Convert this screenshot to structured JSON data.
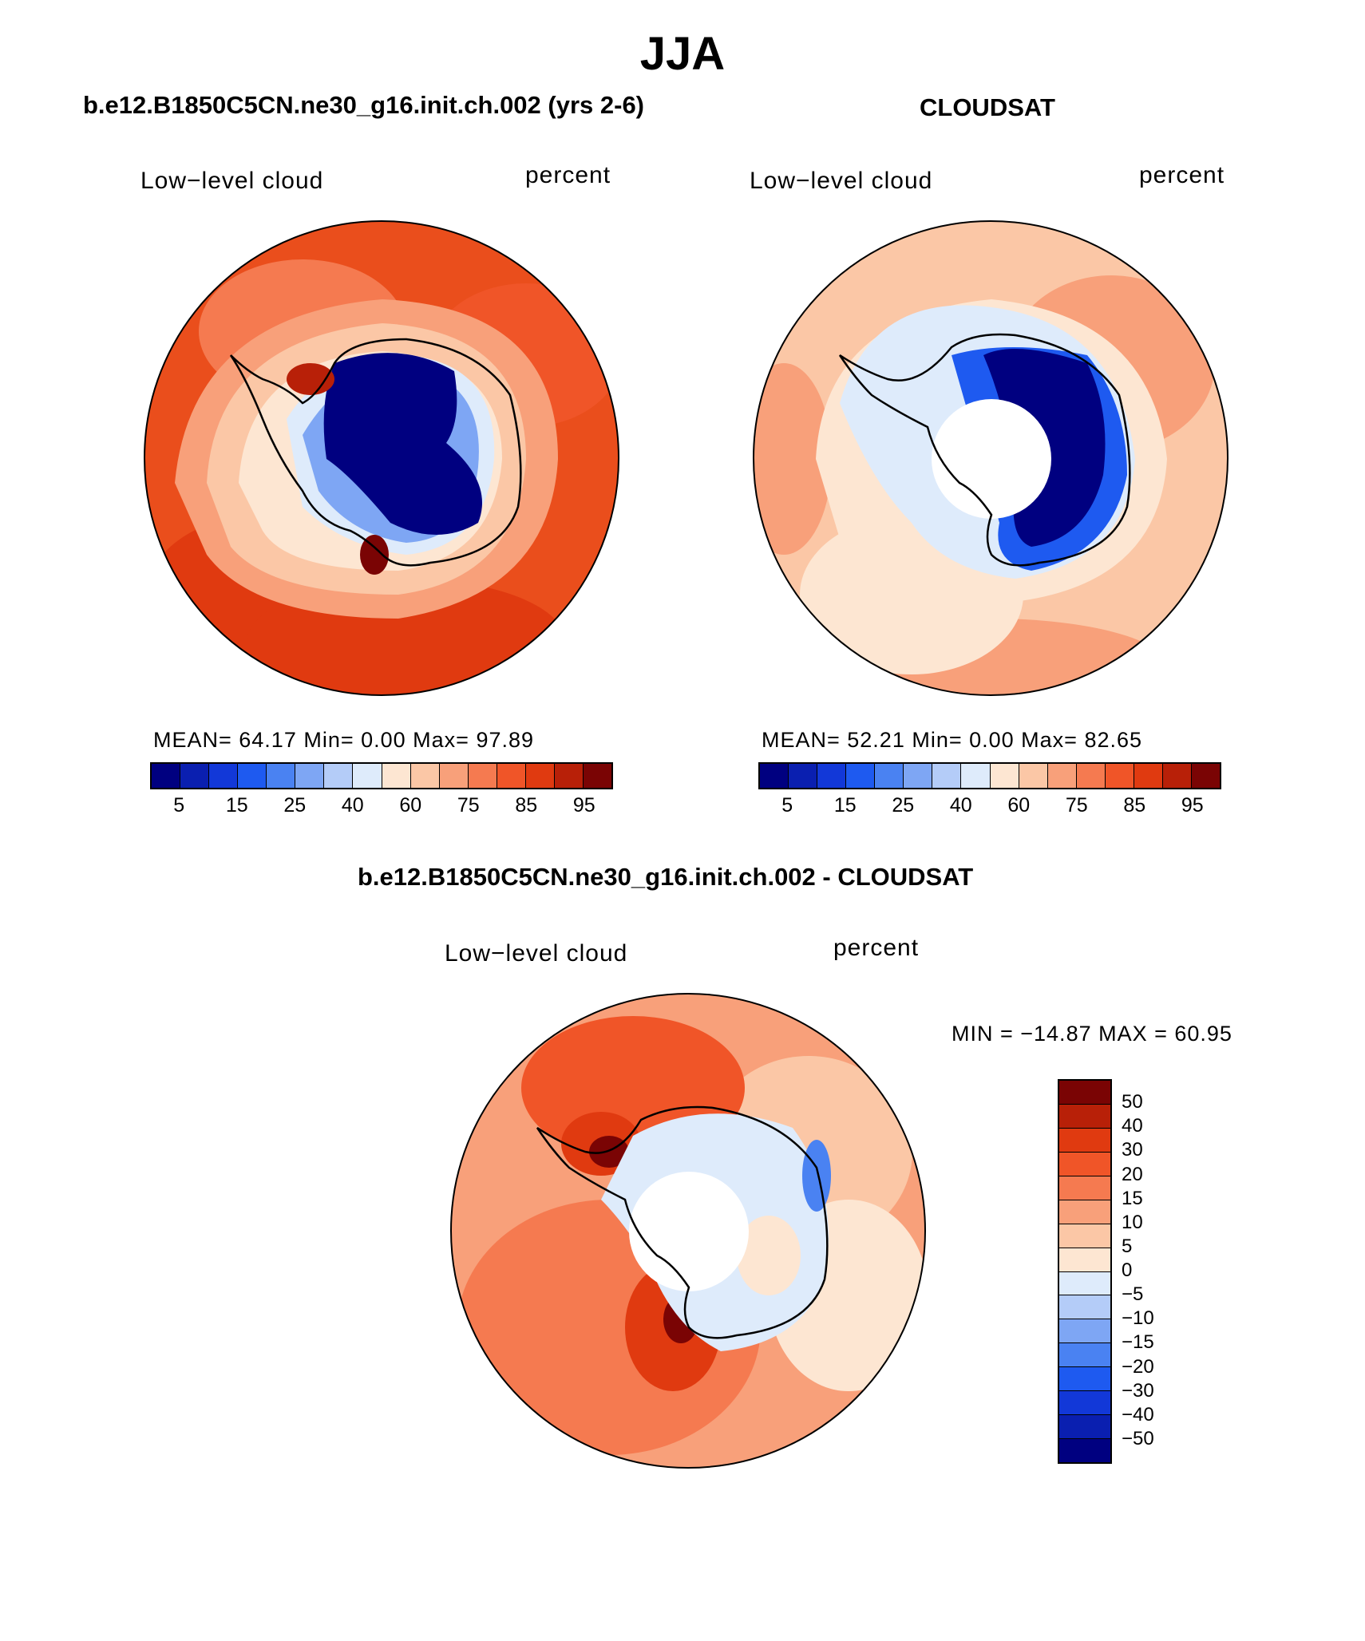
{
  "title": "JJA",
  "panels": [
    {
      "id": "model",
      "title": "b.e12.B1850C5CN.ne30_g16.init.ch.002 (yrs 2-6)",
      "variable": "Low−level cloud",
      "units": "percent",
      "stats_text": "MEAN=   64.17   Min=     0.00   Max=   97.89",
      "colorbar_ticks": [
        "5",
        "15",
        "25",
        "40",
        "60",
        "75",
        "85",
        "95"
      ]
    },
    {
      "id": "obs",
      "title": "CLOUDSAT",
      "variable": "Low−level cloud",
      "units": "percent",
      "stats_text": "MEAN=   52.21   Min=     0.00   Max=   82.65",
      "colorbar_ticks": [
        "5",
        "15",
        "25",
        "40",
        "60",
        "75",
        "85",
        "95"
      ]
    },
    {
      "id": "diff",
      "title": "b.e12.B1850C5CN.ne30_g16.init.ch.002 - CLOUDSAT",
      "variable": "Low−level cloud",
      "units": "percent",
      "stats_text": "MIN = −14.87  MAX =   60.95",
      "colorbar_ticks": [
        "50",
        "40",
        "30",
        "20",
        "15",
        "10",
        "5",
        "0",
        "−5",
        "−10",
        "−15",
        "−20",
        "−30",
        "−40",
        "−50"
      ]
    }
  ],
  "palette_abs": [
    "#000080",
    "#0a1fb0",
    "#1238d8",
    "#1e5af0",
    "#4a82f2",
    "#7ea6f4",
    "#b4ccf8",
    "#deebfb",
    "#fde6d2",
    "#fbc7a6",
    "#f8a07a",
    "#f57a50",
    "#f05528",
    "#e03a10",
    "#b82008",
    "#7a0404"
  ],
  "palette_diff": [
    "#7a0404",
    "#b82008",
    "#e03a10",
    "#f05528",
    "#f57a50",
    "#f8a07a",
    "#fbc7a6",
    "#fde6d2",
    "#deebfb",
    "#b4ccf8",
    "#7ea6f4",
    "#4a82f2",
    "#1e5af0",
    "#1238d8",
    "#0a1fb0",
    "#000080"
  ],
  "map_colors": {
    "ocean_high": "#ea4e1c",
    "ocean_mid": "#f57a50",
    "ocean_light": "#fbc7a6",
    "ice_edge": "#fde6d2",
    "land_low": "#000080",
    "land_mid": "#7ea6f4",
    "land_light": "#deebfb",
    "hole": "#ffffff"
  }
}
